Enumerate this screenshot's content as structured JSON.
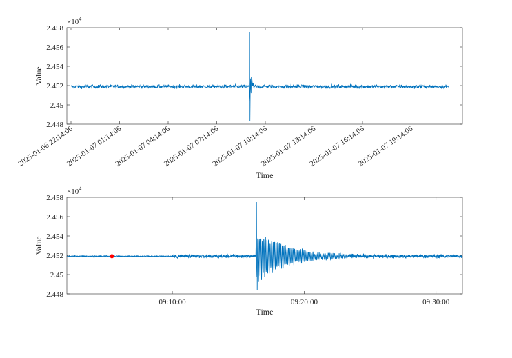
{
  "chart_data": [
    {
      "type": "line",
      "xlabel": "Time",
      "ylabel": "Value",
      "exponent_label": "×10",
      "exponent": "4",
      "ylim": [
        24480,
        24580
      ],
      "yticks": [
        24480,
        24500,
        24520,
        24540,
        24560,
        24580
      ],
      "ytick_labels": [
        "2.448",
        "2.45",
        "2.452",
        "2.454",
        "2.456",
        "2.458"
      ],
      "xlim": [
        "2025-01-06 22:14:06",
        "2025-01-07 22:14:06"
      ],
      "xtick_labels": [
        "2025-01-06 22:14:06",
        "2025-01-07 01:14:06",
        "2025-01-07 04:14:06",
        "2025-01-07 07:14:06",
        "2025-01-07 10:14:06",
        "2025-01-07 13:14:06",
        "2025-01-07 16:14:06",
        "2025-01-07 19:14:06"
      ],
      "line_color": "#0072BD",
      "series_summary": {
        "baseline": 24519,
        "noise_amplitude": 3,
        "spike_time": "2025-01-07 09:16:00",
        "spike_max": 24575,
        "spike_min": 24483
      },
      "grid": false
    },
    {
      "type": "line",
      "xlabel": "Time",
      "ylabel": "Value",
      "exponent_label": "×10",
      "exponent": "4",
      "ylim": [
        24480,
        24580
      ],
      "yticks": [
        24480,
        24500,
        24520,
        24540,
        24560,
        24580
      ],
      "ytick_labels": [
        "2.448",
        "2.45",
        "2.452",
        "2.454",
        "2.456",
        "2.458"
      ],
      "xlim": [
        "09:02:00",
        "09:32:00"
      ],
      "xtick_labels": [
        "09:10:00",
        "09:20:00",
        "09:30:00"
      ],
      "line_color": "#0072BD",
      "marker": {
        "time": "09:05:25",
        "value": 24519,
        "color": "#FF0000"
      },
      "series_summary": {
        "baseline": 24519,
        "spike_time": "09:16:20",
        "spike_max": 24575,
        "spike_min": 24484
      },
      "grid": false
    }
  ]
}
